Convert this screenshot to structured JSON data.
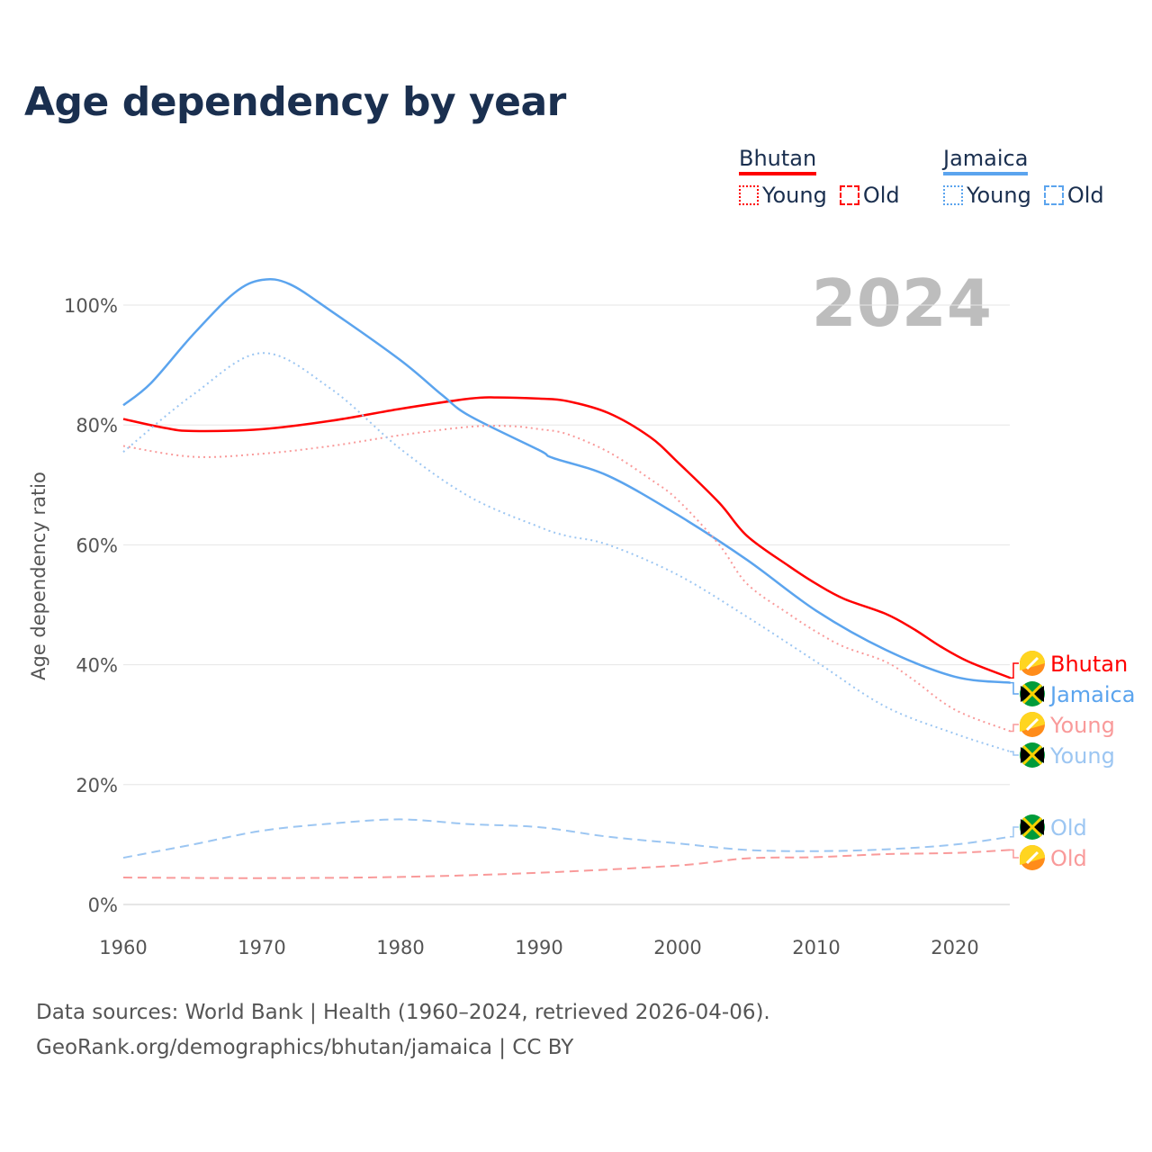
{
  "title": "Age dependency by year",
  "legend": {
    "groups": [
      {
        "name": "Bhutan",
        "color": "#ff0000",
        "items": [
          "Young",
          "Old"
        ]
      },
      {
        "name": "Jamaica",
        "color": "#5ba4ee",
        "items": [
          "Young",
          "Old"
        ]
      }
    ]
  },
  "year_label": "2024",
  "footer": {
    "line1": "Data sources: World Bank | Health (1960–2024, retrieved 2026-04-06).",
    "line2": "GeoRank.org/demographics/bhutan/jamaica | CC BY"
  },
  "chart_data": {
    "type": "line",
    "title": "Age dependency by year",
    "xlabel": "",
    "ylabel": "Age dependency ratio",
    "xlim": [
      1960,
      2024
    ],
    "ylim": [
      0,
      105
    ],
    "x_ticks": [
      "1960",
      "1970",
      "1980",
      "1990",
      "2000",
      "2010",
      "2020"
    ],
    "y_ticks": [
      {
        "v": 0,
        "label": "0%"
      },
      {
        "v": 20,
        "label": "20%"
      },
      {
        "v": 40,
        "label": "40%"
      },
      {
        "v": 60,
        "label": "60%"
      },
      {
        "v": 80,
        "label": "80%"
      },
      {
        "v": 100,
        "label": "100%"
      }
    ],
    "grid": true,
    "series": [
      {
        "name": "Bhutan",
        "end_label": "Bhutan",
        "country": "Bhutan",
        "kind": "total",
        "color": "#ff0000",
        "dash": "solid",
        "x": [
          1960,
          1963,
          1965,
          1970,
          1975,
          1980,
          1985,
          1987,
          1990,
          1992,
          1995,
          1998,
          2000,
          2003,
          2005,
          2008,
          2010,
          2012,
          2015,
          2017,
          2019,
          2021,
          2024
        ],
        "y": [
          81,
          79.5,
          79,
          79.3,
          80.7,
          82.7,
          84.4,
          84.6,
          84.4,
          84,
          82,
          78,
          73.8,
          67,
          61.5,
          56.5,
          53.5,
          51,
          48.5,
          46,
          43,
          40.5,
          37.8
        ]
      },
      {
        "name": "Jamaica",
        "end_label": "Jamaica",
        "country": "Jamaica",
        "kind": "total",
        "color": "#5ba4ee",
        "dash": "solid",
        "x": [
          1960,
          1962,
          1965,
          1968,
          1970,
          1972,
          1975,
          1980,
          1983,
          1985,
          1990,
          1991,
          1995,
          2000,
          2005,
          2010,
          2015,
          2020,
          2024
        ],
        "y": [
          83.3,
          87,
          95,
          102,
          104.2,
          103.5,
          99,
          90.8,
          85,
          81.5,
          75.8,
          74.5,
          71.5,
          65,
          57.5,
          49,
          42.5,
          38,
          37
        ]
      },
      {
        "name": "Bhutan Young",
        "end_label": "Young",
        "country": "Bhutan",
        "kind": "young",
        "color": "#f99a9a",
        "dash": "dotted",
        "x": [
          1960,
          1965,
          1970,
          1975,
          1980,
          1985,
          1988,
          1990,
          1992,
          1995,
          1998,
          2000,
          2003,
          2005,
          2008,
          2010,
          2012,
          2015,
          2017,
          2020,
          2024
        ],
        "y": [
          76.5,
          74.7,
          75.2,
          76.5,
          78.3,
          79.7,
          79.8,
          79.3,
          78.5,
          75.5,
          71,
          67.5,
          60,
          53.5,
          48.5,
          45.5,
          43,
          40.5,
          37.5,
          32.5,
          28.9
        ]
      },
      {
        "name": "Jamaica Young",
        "end_label": "Young",
        "country": "Jamaica",
        "kind": "young",
        "color": "#9cc6f2",
        "dash": "dotted",
        "x": [
          1960,
          1965,
          1970,
          1975,
          1980,
          1985,
          1990,
          1992,
          1995,
          2000,
          2005,
          2010,
          2015,
          2020,
          2024
        ],
        "y": [
          75.5,
          85,
          92,
          86,
          76,
          68,
          63,
          61.5,
          60,
          55,
          48,
          40.5,
          33,
          28.5,
          25.5
        ]
      },
      {
        "name": "Jamaica Old",
        "end_label": "Old",
        "country": "Jamaica",
        "kind": "old",
        "color": "#9cc6f2",
        "dash": "dashed",
        "x": [
          1960,
          1965,
          1970,
          1975,
          1980,
          1985,
          1990,
          1995,
          2000,
          2005,
          2010,
          2015,
          2020,
          2024
        ],
        "y": [
          7.8,
          10,
          12.3,
          13.5,
          14.2,
          13.4,
          12.9,
          11.3,
          10.2,
          9.1,
          8.9,
          9.2,
          10,
          11.3
        ]
      },
      {
        "name": "Bhutan Old",
        "end_label": "Old",
        "country": "Bhutan",
        "kind": "old",
        "color": "#f99a9a",
        "dash": "dashed",
        "x": [
          1960,
          1970,
          1980,
          1990,
          2000,
          2005,
          2010,
          2015,
          2020,
          2024
        ],
        "y": [
          4.5,
          4.4,
          4.6,
          5.3,
          6.5,
          7.7,
          7.9,
          8.4,
          8.6,
          9.1
        ]
      }
    ]
  }
}
